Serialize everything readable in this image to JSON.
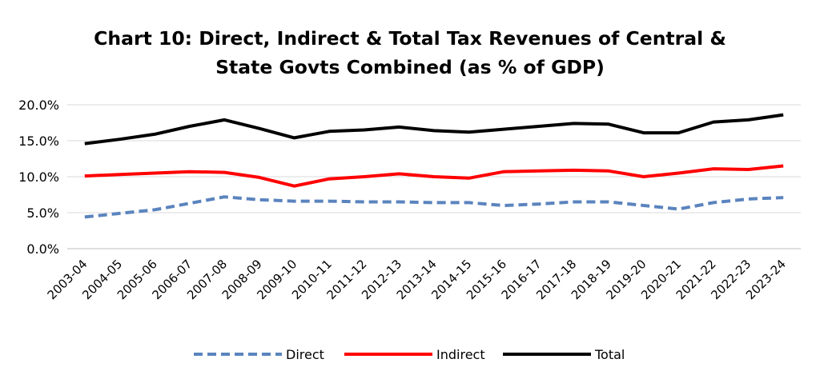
{
  "chart_data": {
    "type": "line",
    "title_lines": [
      "Chart 10: Direct, Indirect & Total Tax Revenues of Central &",
      "State Govts Combined (as % of GDP)"
    ],
    "categories": [
      "2003-04",
      "2004-05",
      "2005-06",
      "2006-07",
      "2007-08",
      "2008-09",
      "2009-10",
      "2010-11",
      "2011-12",
      "2012-13",
      "2013-14",
      "2014-15",
      "2015-16",
      "2016-17",
      "2017-18",
      "2018-19",
      "2019-20",
      "2020-21",
      "2021-22",
      "2022-23",
      "2023-24"
    ],
    "ylim": [
      0,
      20
    ],
    "yticks": [
      0,
      5,
      10,
      15,
      20
    ],
    "ytick_labels": [
      "0.0%",
      "5.0%",
      "10.0%",
      "15.0%",
      "20.0%"
    ],
    "grid": true,
    "legend_position": "bottom",
    "series": [
      {
        "name": "Direct",
        "color": "#5B84BE",
        "style": "dashed",
        "values": [
          4.4,
          4.9,
          5.4,
          6.3,
          7.2,
          6.8,
          6.6,
          6.6,
          6.5,
          6.5,
          6.4,
          6.4,
          6.0,
          6.2,
          6.5,
          6.5,
          6.0,
          5.5,
          6.4,
          6.9,
          7.1
        ]
      },
      {
        "name": "Indirect",
        "color": "#FF0000",
        "style": "solid",
        "values": [
          10.1,
          10.3,
          10.5,
          10.7,
          10.6,
          9.9,
          8.7,
          9.7,
          10.0,
          10.4,
          10.0,
          9.8,
          10.7,
          10.8,
          10.9,
          10.8,
          10.0,
          10.5,
          11.1,
          11.0,
          11.5
        ]
      },
      {
        "name": "Total",
        "color": "#000000",
        "style": "solid",
        "values": [
          14.6,
          15.2,
          15.9,
          17.0,
          17.9,
          16.7,
          15.4,
          16.3,
          16.5,
          16.9,
          16.4,
          16.2,
          16.6,
          17.0,
          17.4,
          17.3,
          16.1,
          16.1,
          17.6,
          17.9,
          18.6
        ]
      }
    ]
  }
}
